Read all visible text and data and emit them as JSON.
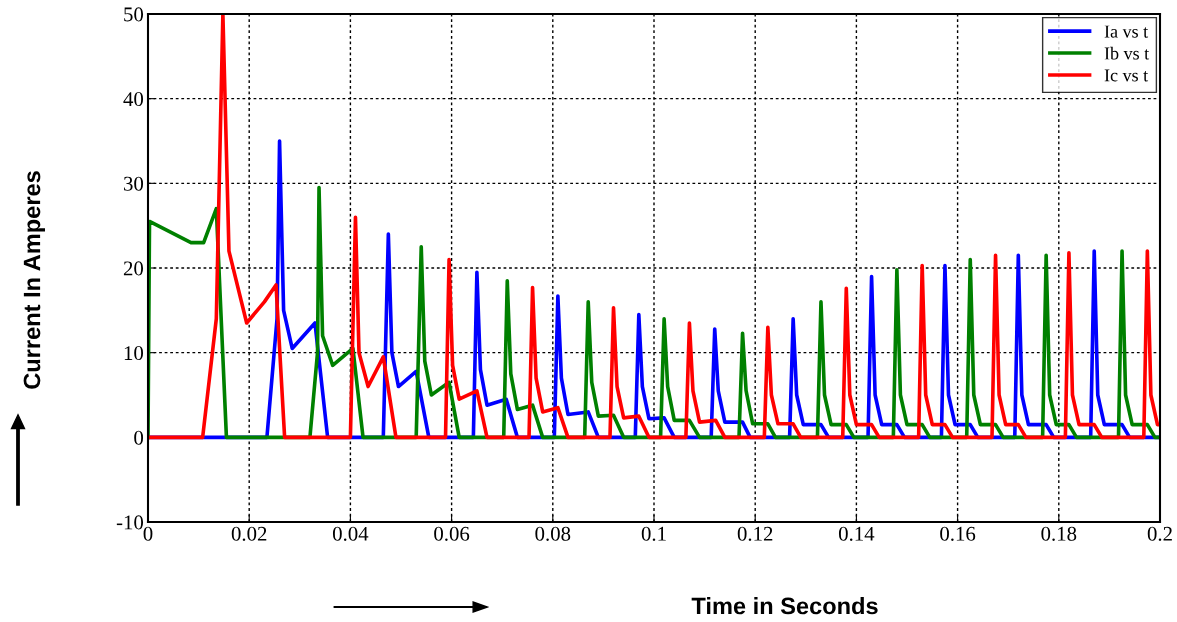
{
  "chart_data": {
    "type": "line",
    "xlabel": "Time in Seconds",
    "ylabel": "Current In Amperes",
    "xlim": [
      0,
      0.2
    ],
    "ylim": [
      -10,
      50
    ],
    "xticks": [
      0,
      0.02,
      0.04,
      0.06,
      0.08,
      0.1,
      0.12,
      0.14,
      0.16,
      0.18,
      0.2
    ],
    "yticks": [
      -10,
      0,
      10,
      20,
      30,
      40,
      50
    ],
    "grid": true,
    "legend": "top right",
    "line_style": "solid",
    "marker": "none",
    "series": [
      {
        "name": "Ia vs t",
        "color": "#0000ff",
        "x": [
          0,
          0.0235,
          0.0255,
          0.026,
          0.0268,
          0.0285,
          0.033,
          0.0355,
          0.0465,
          0.0475,
          0.0482,
          0.0495,
          0.053,
          0.0555,
          0.0643,
          0.065,
          0.0657,
          0.067,
          0.0708,
          0.073,
          0.0803,
          0.081,
          0.0817,
          0.083,
          0.087,
          0.089,
          0.0963,
          0.097,
          0.0977,
          0.099,
          0.102,
          0.104,
          0.1113,
          0.112,
          0.1127,
          0.114,
          0.1175,
          0.119,
          0.1268,
          0.1275,
          0.1282,
          0.1295,
          0.133,
          0.1345,
          0.1423,
          0.143,
          0.1437,
          0.145,
          0.148,
          0.1495,
          0.1568,
          0.1575,
          0.1582,
          0.1595,
          0.1625,
          0.164,
          0.1713,
          0.172,
          0.1727,
          0.174,
          0.1775,
          0.179,
          0.1863,
          0.187,
          0.1877,
          0.189,
          0.1925,
          0.194,
          0.2
        ],
        "values": [
          0,
          0,
          14,
          35,
          15,
          10.5,
          13.5,
          0,
          0,
          24,
          10,
          6,
          7.8,
          0,
          0,
          19.5,
          8,
          3.8,
          4.5,
          0,
          0,
          16.7,
          7,
          2.7,
          3,
          0,
          0,
          14.5,
          6,
          2.2,
          2.3,
          0,
          0,
          12.8,
          5.5,
          1.8,
          1.8,
          0,
          0,
          14,
          5,
          1.5,
          1.5,
          0,
          0,
          19,
          5,
          1.5,
          1.5,
          0,
          0,
          20.3,
          5,
          1.5,
          1.5,
          0,
          0,
          21.5,
          5,
          1.5,
          1.5,
          0,
          0,
          22,
          5,
          1.5,
          1.5,
          0,
          0
        ]
      },
      {
        "name": "Ib vs t",
        "color": "#008000",
        "x": [
          0,
          0.0003,
          0.0085,
          0.011,
          0.0135,
          0.0155,
          0.032,
          0.0335,
          0.0338,
          0.0345,
          0.0365,
          0.0405,
          0.0425,
          0.053,
          0.054,
          0.0547,
          0.056,
          0.0595,
          0.0615,
          0.0703,
          0.071,
          0.0717,
          0.073,
          0.076,
          0.078,
          0.0863,
          0.087,
          0.0877,
          0.089,
          0.092,
          0.094,
          0.1013,
          0.102,
          0.1027,
          0.104,
          0.107,
          0.109,
          0.1168,
          0.1175,
          0.1182,
          0.1195,
          0.1225,
          0.124,
          0.1323,
          0.133,
          0.1337,
          0.135,
          0.138,
          0.1395,
          0.1473,
          0.148,
          0.1487,
          0.15,
          0.153,
          0.1545,
          0.1618,
          0.1625,
          0.1632,
          0.1645,
          0.1675,
          0.169,
          0.1768,
          0.1775,
          0.1782,
          0.1795,
          0.182,
          0.1835,
          0.1918,
          0.1925,
          0.1932,
          0.1945,
          0.1975,
          0.199,
          0.2
        ],
        "values": [
          0,
          25.5,
          23,
          23,
          27,
          0,
          0,
          10,
          29.5,
          12,
          8.5,
          10.5,
          0,
          0,
          22.5,
          9,
          5,
          6.5,
          0,
          0,
          18.5,
          7.5,
          3.3,
          3.8,
          0,
          0,
          16,
          6.5,
          2.5,
          2.6,
          0,
          0,
          14,
          6,
          2,
          2,
          0,
          0,
          12.3,
          5.5,
          1.6,
          1.6,
          0,
          0,
          16,
          5,
          1.5,
          1.5,
          0,
          0,
          19.8,
          5,
          1.5,
          1.5,
          0,
          0,
          21,
          5,
          1.5,
          1.5,
          0,
          0,
          21.5,
          5,
          1.5,
          1.5,
          0,
          0,
          22,
          5,
          1.5,
          1.5,
          0,
          0
        ]
      },
      {
        "name": "Ic vs t",
        "color": "#ff0000",
        "x": [
          0,
          0.0108,
          0.0135,
          0.0148,
          0.016,
          0.0195,
          0.023,
          0.0253,
          0.027,
          0.04,
          0.041,
          0.0417,
          0.0435,
          0.0465,
          0.049,
          0.0588,
          0.0595,
          0.0602,
          0.0615,
          0.065,
          0.067,
          0.0753,
          0.076,
          0.0767,
          0.078,
          0.081,
          0.083,
          0.0913,
          0.092,
          0.0927,
          0.094,
          0.097,
          0.099,
          0.1063,
          0.107,
          0.1077,
          0.109,
          0.1122,
          0.114,
          0.1218,
          0.1225,
          0.1232,
          0.1245,
          0.1275,
          0.129,
          0.1373,
          0.138,
          0.1387,
          0.14,
          0.143,
          0.1445,
          0.1523,
          0.153,
          0.1537,
          0.155,
          0.1575,
          0.159,
          0.1668,
          0.1675,
          0.1682,
          0.1695,
          0.172,
          0.1735,
          0.1813,
          0.182,
          0.1827,
          0.184,
          0.187,
          0.1885,
          0.1968,
          0.1975,
          0.1982,
          0.1995,
          0.2
        ],
        "values": [
          0,
          0,
          14,
          50,
          22,
          13.5,
          16,
          18,
          0,
          0,
          26,
          10,
          6,
          9.5,
          0,
          0,
          21,
          8.5,
          4.5,
          5.5,
          0,
          0,
          17.7,
          7,
          3,
          3.5,
          0,
          0,
          15.3,
          6,
          2.3,
          2.5,
          0,
          0,
          13.5,
          5.5,
          1.8,
          2,
          0,
          0,
          13,
          5,
          1.6,
          1.6,
          0,
          0,
          17.6,
          5,
          1.5,
          1.5,
          0,
          0,
          20.3,
          5,
          1.5,
          1.5,
          0,
          0,
          21.5,
          5,
          1.5,
          1.5,
          0,
          0,
          21.8,
          5,
          1.5,
          1.5,
          0,
          0,
          22,
          5,
          1.5,
          1.5
        ]
      }
    ]
  }
}
